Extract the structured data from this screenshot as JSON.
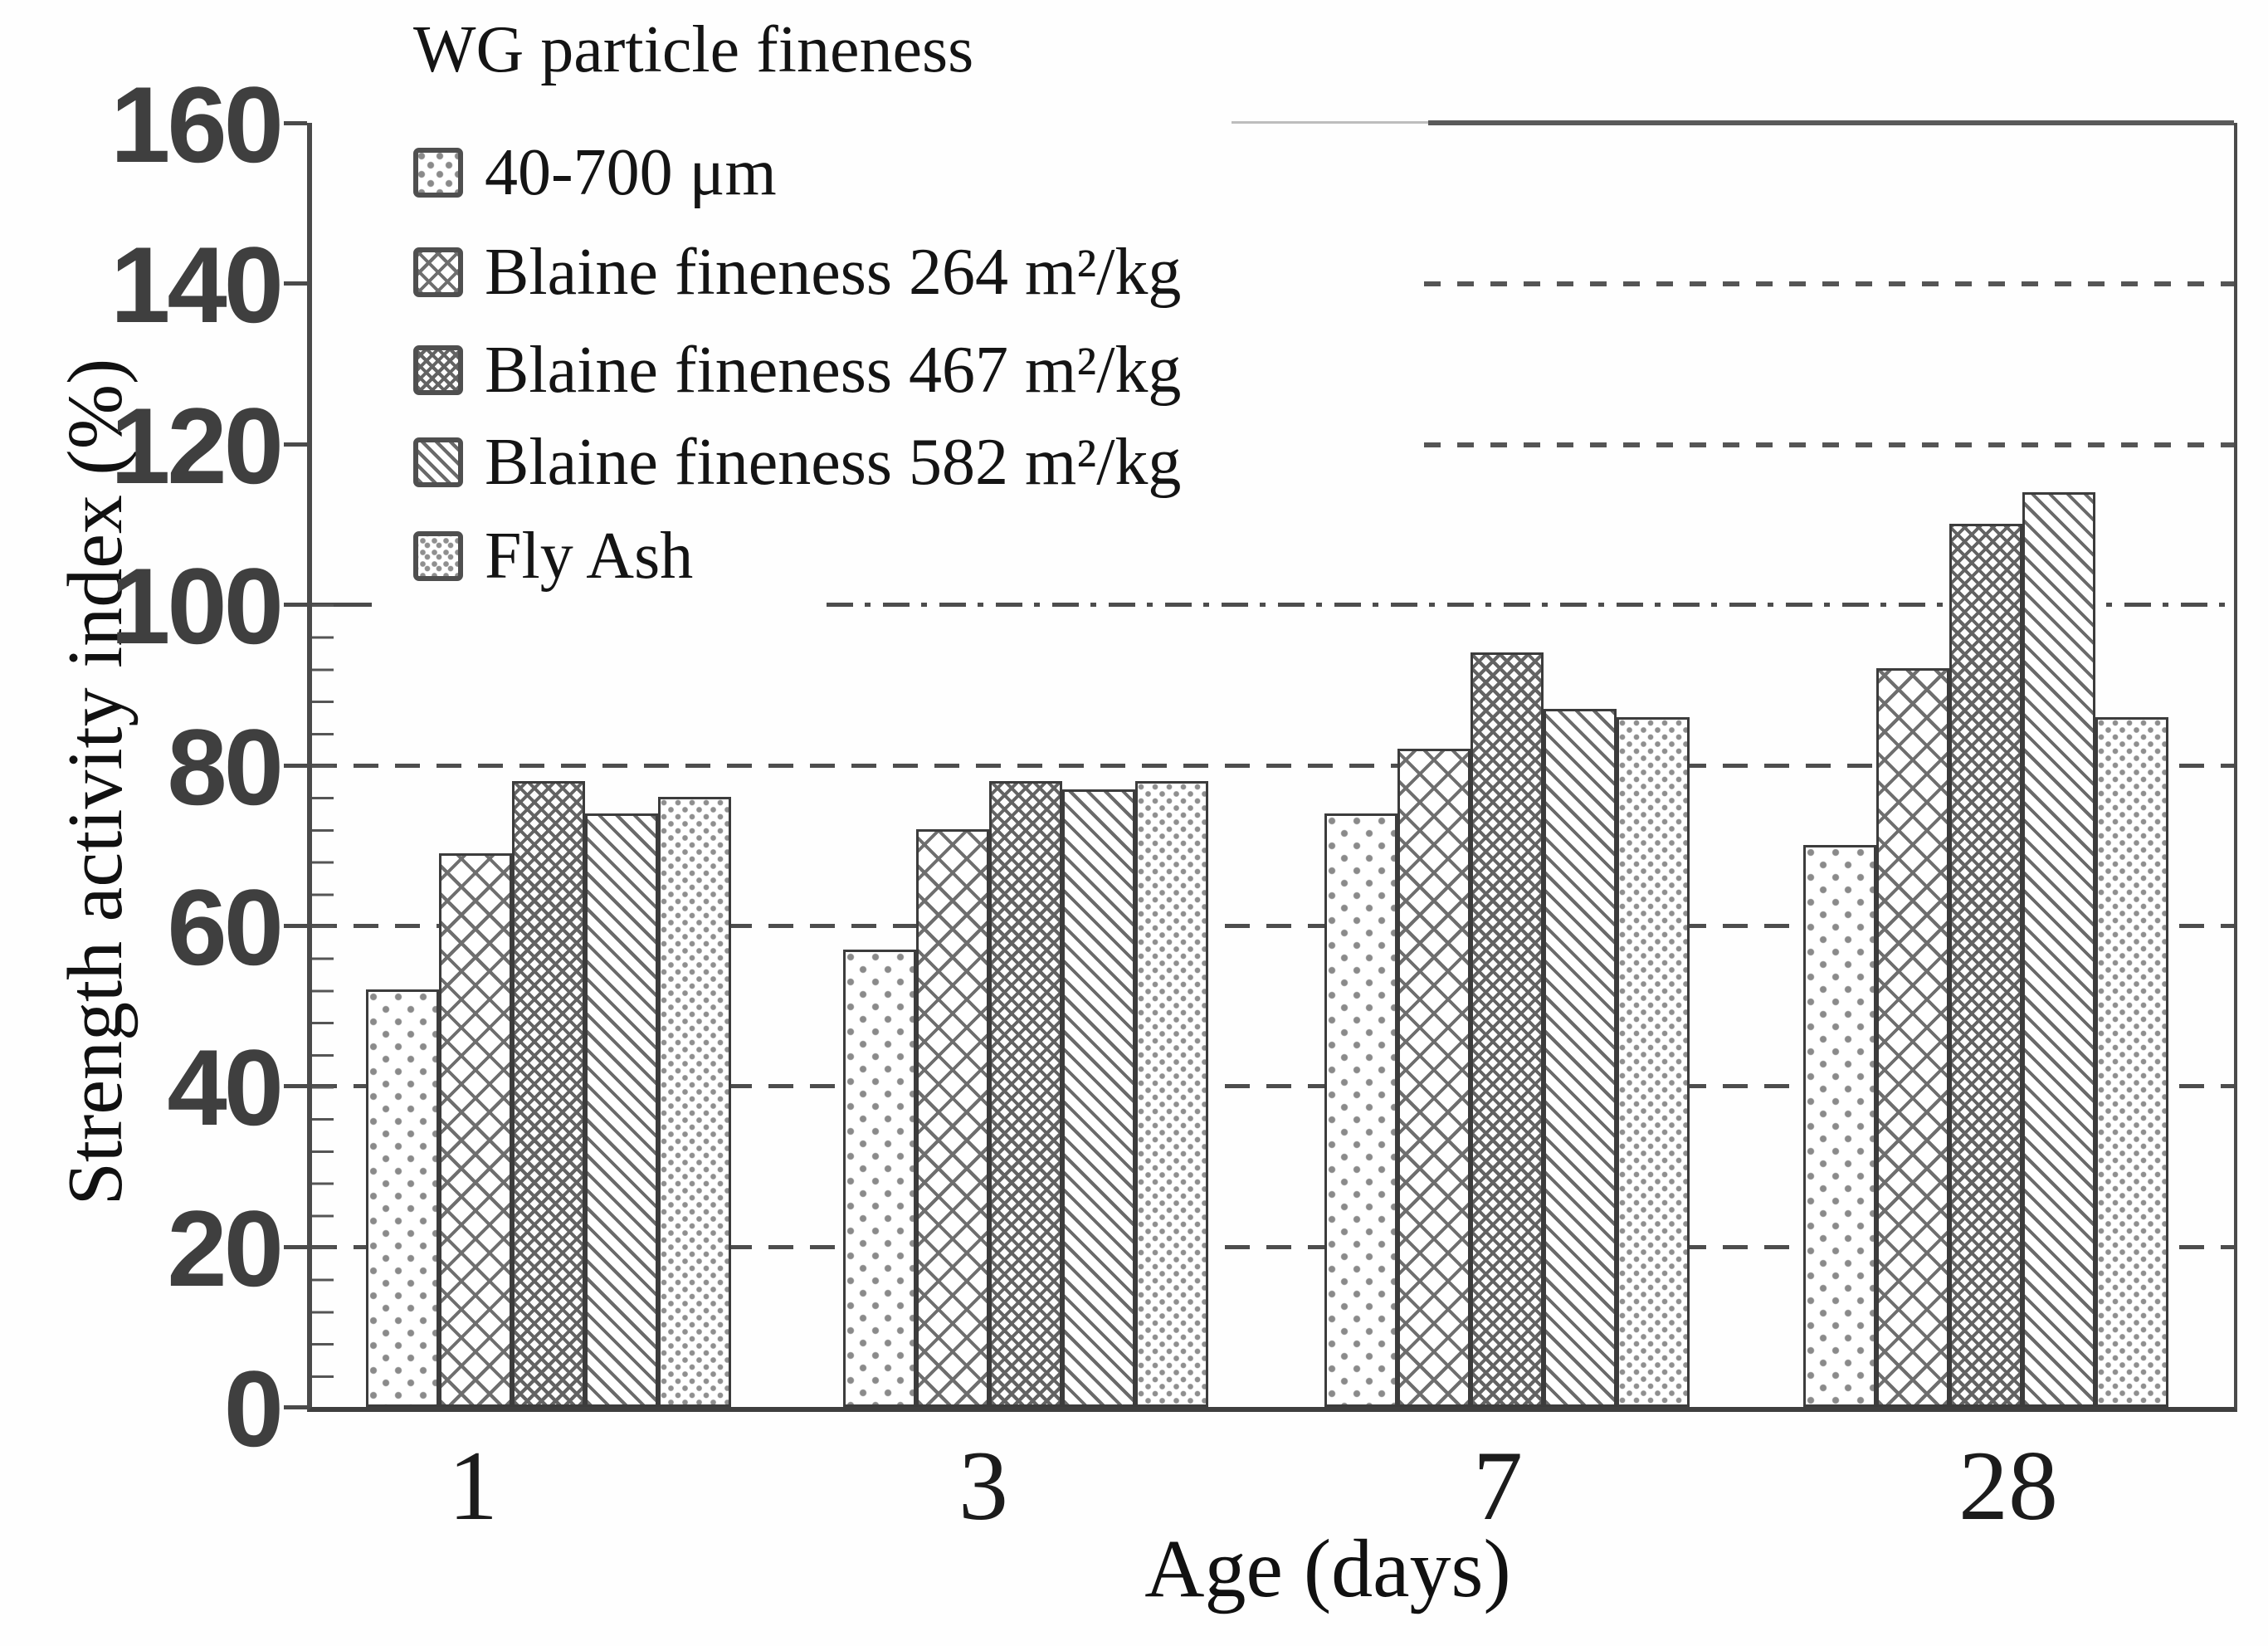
{
  "figure": {
    "y_axis": {
      "title": "Strength activity index (%)",
      "tick_labels": [
        "0",
        "20",
        "40",
        "60",
        "80",
        "100",
        "120",
        "140",
        "160"
      ]
    },
    "x_axis": {
      "title": "Age (days)",
      "category_labels": [
        "1",
        "3",
        "7",
        "28"
      ]
    },
    "legend": {
      "title": "WG particle fineness",
      "items": [
        {
          "label": "40-700 μm",
          "pattern": "dots-sparse"
        },
        {
          "label": "Blaine fineness 264 m²/kg",
          "pattern": "crosshatch-large"
        },
        {
          "label": "Blaine fineness 467 m²/kg",
          "pattern": "crosshatch-fine"
        },
        {
          "label": "Blaine fineness 582 m²/kg",
          "pattern": "diagonal-hatch"
        },
        {
          "label": "Fly Ash",
          "pattern": "dots-fine"
        }
      ]
    },
    "colors": {
      "ink": "#1c1c1c",
      "axis": "#4a4a4a",
      "grid": "#4d4d4d",
      "hatch": "#6e6e6e",
      "background": "#ffffff"
    }
  },
  "chart_data": {
    "type": "bar",
    "categories": [
      "1",
      "3",
      "7",
      "28"
    ],
    "series": [
      {
        "name": "40-700 μm",
        "pattern": "dots-sparse",
        "values": [
          52,
          57,
          74,
          70
        ]
      },
      {
        "name": "Blaine fineness 264 m²/kg",
        "pattern": "crosshatch-large",
        "values": [
          69,
          72,
          82,
          92
        ]
      },
      {
        "name": "Blaine fineness 467 m²/kg",
        "pattern": "crosshatch-fine",
        "values": [
          78,
          78,
          94,
          110
        ]
      },
      {
        "name": "Blaine fineness 582 m²/kg",
        "pattern": "diagonal-hatch",
        "values": [
          74,
          77,
          87,
          114
        ]
      },
      {
        "name": "Fly Ash",
        "pattern": "dots-fine",
        "values": [
          76,
          78,
          86,
          86
        ]
      }
    ],
    "title": "",
    "xlabel": "Age (days)",
    "ylabel": "Strength activity index (%)",
    "ylim": [
      0,
      160
    ],
    "ytick_step": 20,
    "grid": "dashed horizontal gridlines",
    "legend_title": "WG particle fineness",
    "legend_position": "upper-left"
  }
}
